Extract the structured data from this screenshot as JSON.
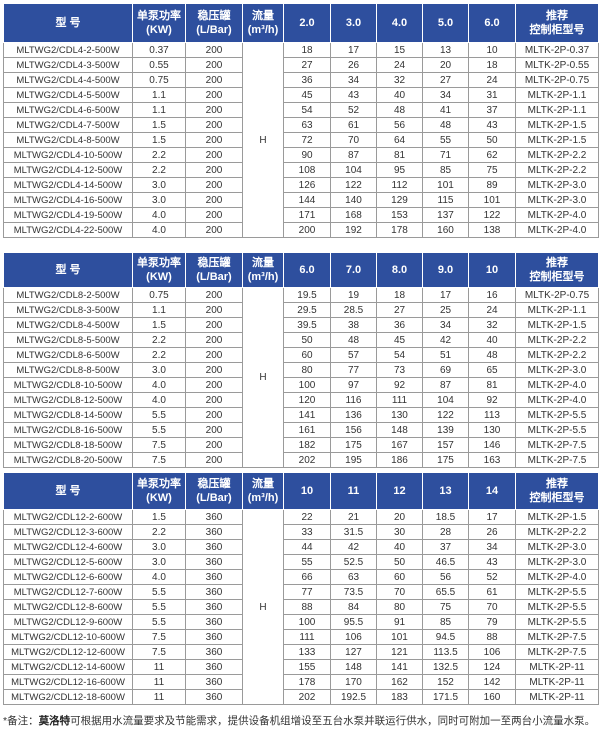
{
  "headers_common": {
    "model": "型  号",
    "power": [
      "单泵功率",
      "(KW)"
    ],
    "tank": [
      "稳压罐",
      "(L/Bar)"
    ],
    "flow": [
      "流量",
      "(m³/h)"
    ],
    "cabinet": [
      "推荐",
      "控制柜型号"
    ],
    "head_symbol": "H"
  },
  "tables": [
    {
      "flows": [
        "2.0",
        "3.0",
        "4.0",
        "5.0",
        "6.0"
      ],
      "rows": [
        [
          "MLTWG2/CDL4-2-500W",
          "0.37",
          "200",
          "18",
          "17",
          "15",
          "13",
          "10",
          "MLTK-2P-0.37"
        ],
        [
          "MLTWG2/CDL4-3-500W",
          "0.55",
          "200",
          "27",
          "26",
          "24",
          "20",
          "18",
          "MLTK-2P-0.55"
        ],
        [
          "MLTWG2/CDL4-4-500W",
          "0.75",
          "200",
          "36",
          "34",
          "32",
          "27",
          "24",
          "MLTK-2P-0.75"
        ],
        [
          "MLTWG2/CDL4-5-500W",
          "1.1",
          "200",
          "45",
          "43",
          "40",
          "34",
          "31",
          "MLTK-2P-1.1"
        ],
        [
          "MLTWG2/CDL4-6-500W",
          "1.1",
          "200",
          "54",
          "52",
          "48",
          "41",
          "37",
          "MLTK-2P-1.1"
        ],
        [
          "MLTWG2/CDL4-7-500W",
          "1.5",
          "200",
          "63",
          "61",
          "56",
          "48",
          "43",
          "MLTK-2P-1.5"
        ],
        [
          "MLTWG2/CDL4-8-500W",
          "1.5",
          "200",
          "72",
          "70",
          "64",
          "55",
          "50",
          "MLTK-2P-1.5"
        ],
        [
          "MLTWG2/CDL4-10-500W",
          "2.2",
          "200",
          "90",
          "87",
          "81",
          "71",
          "62",
          "MLTK-2P-2.2"
        ],
        [
          "MLTWG2/CDL4-12-500W",
          "2.2",
          "200",
          "108",
          "104",
          "95",
          "85",
          "75",
          "MLTK-2P-2.2"
        ],
        [
          "MLTWG2/CDL4-14-500W",
          "3.0",
          "200",
          "126",
          "122",
          "112",
          "101",
          "89",
          "MLTK-2P-3.0"
        ],
        [
          "MLTWG2/CDL4-16-500W",
          "3.0",
          "200",
          "144",
          "140",
          "129",
          "115",
          "101",
          "MLTK-2P-3.0"
        ],
        [
          "MLTWG2/CDL4-19-500W",
          "4.0",
          "200",
          "171",
          "168",
          "153",
          "137",
          "122",
          "MLTK-2P-4.0"
        ],
        [
          "MLTWG2/CDL4-22-500W",
          "4.0",
          "200",
          "200",
          "192",
          "178",
          "160",
          "138",
          "MLTK-2P-4.0"
        ]
      ]
    },
    {
      "flows": [
        "6.0",
        "7.0",
        "8.0",
        "9.0",
        "10"
      ],
      "rows": [
        [
          "MLTWG2/CDL8-2-500W",
          "0.75",
          "200",
          "19.5",
          "19",
          "18",
          "17",
          "16",
          "MLTK-2P-0.75"
        ],
        [
          "MLTWG2/CDL8-3-500W",
          "1.1",
          "200",
          "29.5",
          "28.5",
          "27",
          "25",
          "24",
          "MLTK-2P-1.1"
        ],
        [
          "MLTWG2/CDL8-4-500W",
          "1.5",
          "200",
          "39.5",
          "38",
          "36",
          "34",
          "32",
          "MLTK-2P-1.5"
        ],
        [
          "MLTWG2/CDL8-5-500W",
          "2.2",
          "200",
          "50",
          "48",
          "45",
          "42",
          "40",
          "MLTK-2P-2.2"
        ],
        [
          "MLTWG2/CDL8-6-500W",
          "2.2",
          "200",
          "60",
          "57",
          "54",
          "51",
          "48",
          "MLTK-2P-2.2"
        ],
        [
          "MLTWG2/CDL8-8-500W",
          "3.0",
          "200",
          "80",
          "77",
          "73",
          "69",
          "65",
          "MLTK-2P-3.0"
        ],
        [
          "MLTWG2/CDL8-10-500W",
          "4.0",
          "200",
          "100",
          "97",
          "92",
          "87",
          "81",
          "MLTK-2P-4.0"
        ],
        [
          "MLTWG2/CDL8-12-500W",
          "4.0",
          "200",
          "120",
          "116",
          "111",
          "104",
          "92",
          "MLTK-2P-4.0"
        ],
        [
          "MLTWG2/CDL8-14-500W",
          "5.5",
          "200",
          "141",
          "136",
          "130",
          "122",
          "113",
          "MLTK-2P-5.5"
        ],
        [
          "MLTWG2/CDL8-16-500W",
          "5.5",
          "200",
          "161",
          "156",
          "148",
          "139",
          "130",
          "MLTK-2P-5.5"
        ],
        [
          "MLTWG2/CDL8-18-500W",
          "7.5",
          "200",
          "182",
          "175",
          "167",
          "157",
          "146",
          "MLTK-2P-7.5"
        ],
        [
          "MLTWG2/CDL8-20-500W",
          "7.5",
          "200",
          "202",
          "195",
          "186",
          "175",
          "163",
          "MLTK-2P-7.5"
        ]
      ]
    },
    {
      "flows": [
        "10",
        "11",
        "12",
        "13",
        "14"
      ],
      "rows": [
        [
          "MLTWG2/CDL12-2-600W",
          "1.5",
          "360",
          "22",
          "21",
          "20",
          "18.5",
          "17",
          "MLTK-2P-1.5"
        ],
        [
          "MLTWG2/CDL12-3-600W",
          "2.2",
          "360",
          "33",
          "31.5",
          "30",
          "28",
          "26",
          "MLTK-2P-2.2"
        ],
        [
          "MLTWG2/CDL12-4-600W",
          "3.0",
          "360",
          "44",
          "42",
          "40",
          "37",
          "34",
          "MLTK-2P-3.0"
        ],
        [
          "MLTWG2/CDL12-5-600W",
          "3.0",
          "360",
          "55",
          "52.5",
          "50",
          "46.5",
          "43",
          "MLTK-2P-3.0"
        ],
        [
          "MLTWG2/CDL12-6-600W",
          "4.0",
          "360",
          "66",
          "63",
          "60",
          "56",
          "52",
          "MLTK-2P-4.0"
        ],
        [
          "MLTWG2/CDL12-7-600W",
          "5.5",
          "360",
          "77",
          "73.5",
          "70",
          "65.5",
          "61",
          "MLTK-2P-5.5"
        ],
        [
          "MLTWG2/CDL12-8-600W",
          "5.5",
          "360",
          "88",
          "84",
          "80",
          "75",
          "70",
          "MLTK-2P-5.5"
        ],
        [
          "MLTWG2/CDL12-9-600W",
          "5.5",
          "360",
          "100",
          "95.5",
          "91",
          "85",
          "79",
          "MLTK-2P-5.5"
        ],
        [
          "MLTWG2/CDL12-10-600W",
          "7.5",
          "360",
          "111",
          "106",
          "101",
          "94.5",
          "88",
          "MLTK-2P-7.5"
        ],
        [
          "MLTWG2/CDL12-12-600W",
          "7.5",
          "360",
          "133",
          "127",
          "121",
          "113.5",
          "106",
          "MLTK-2P-7.5"
        ],
        [
          "MLTWG2/CDL12-14-600W",
          "11",
          "360",
          "155",
          "148",
          "141",
          "132.5",
          "124",
          "MLTK-2P-11"
        ],
        [
          "MLTWG2/CDL12-16-600W",
          "11",
          "360",
          "178",
          "170",
          "162",
          "152",
          "142",
          "MLTK-2P-11"
        ],
        [
          "MLTWG2/CDL12-18-600W",
          "11",
          "360",
          "202",
          "192.5",
          "183",
          "171.5",
          "160",
          "MLTK-2P-11"
        ]
      ]
    }
  ],
  "note": {
    "prefix": "*备注：",
    "brand": "莫洛特",
    "text": "可根据用水流量要求及节能需求，提供设备机组增设至五台水泵并联运行供水，同时可附加一至两台小流量水泵。"
  }
}
